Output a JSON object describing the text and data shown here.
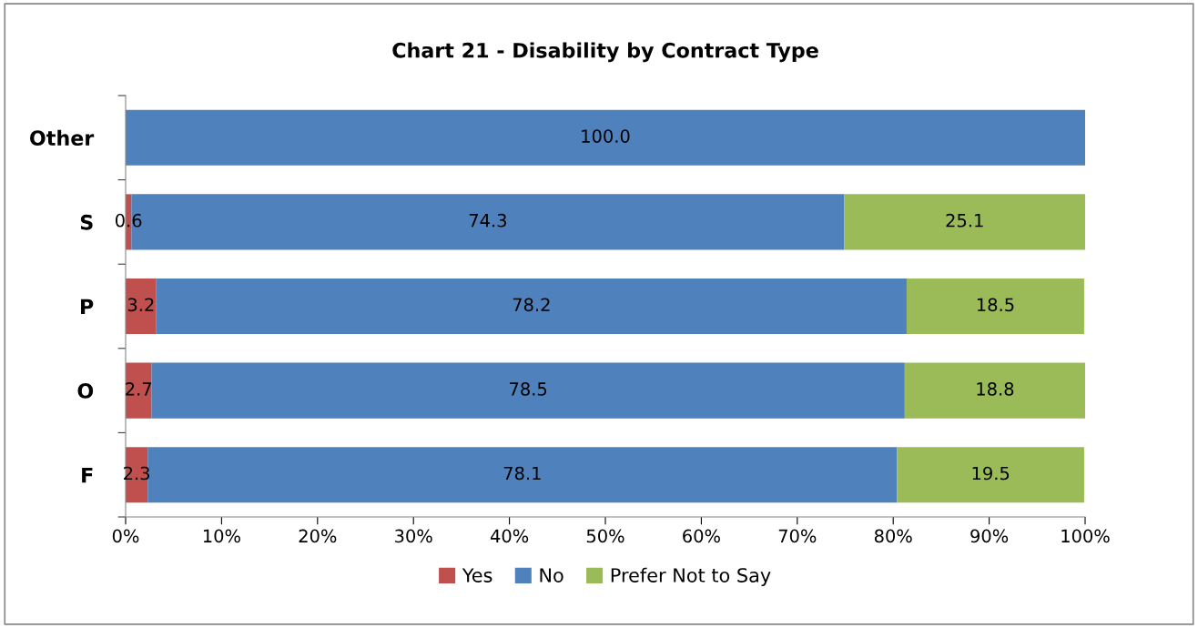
{
  "chart_data": {
    "type": "bar",
    "orientation": "horizontal",
    "stacked": true,
    "title": "Chart 21 - Disability by Contract Type",
    "categories": [
      "Other",
      "S",
      "P",
      "O",
      "F"
    ],
    "series": [
      {
        "name": "Yes",
        "color": "#c0504d",
        "values": [
          null,
          0.6,
          3.2,
          2.7,
          2.3
        ],
        "value_labels": [
          null,
          "0.6",
          "3.2",
          "2.7",
          "2.3"
        ]
      },
      {
        "name": "No",
        "color": "#4f81bd",
        "values": [
          100,
          74.3,
          78.2,
          78.5,
          78.1
        ],
        "value_labels": [
          "100.0",
          "74.3",
          "78.2",
          "78.5",
          "78.1"
        ]
      },
      {
        "name": "Prefer Not to Say",
        "color": "#9bbb59",
        "values": [
          null,
          25.1,
          18.5,
          18.8,
          19.5
        ],
        "value_labels": [
          null,
          "25.1",
          "18.5",
          "18.8",
          "19.5"
        ]
      }
    ],
    "xlim": [
      0,
      100
    ],
    "xticks": [
      {
        "value": 0,
        "label": "0%"
      },
      {
        "value": 10,
        "label": "10%"
      },
      {
        "value": 20,
        "label": "20%"
      },
      {
        "value": 30,
        "label": "30%"
      },
      {
        "value": 40,
        "label": "40%"
      },
      {
        "value": 50,
        "label": "50%"
      },
      {
        "value": 60,
        "label": "60%"
      },
      {
        "value": 70,
        "label": "70%"
      },
      {
        "value": 80,
        "label": "80%"
      },
      {
        "value": 90,
        "label": "90%"
      },
      {
        "value": 100,
        "label": "100%"
      }
    ],
    "grid": false,
    "legend": "bottom"
  }
}
